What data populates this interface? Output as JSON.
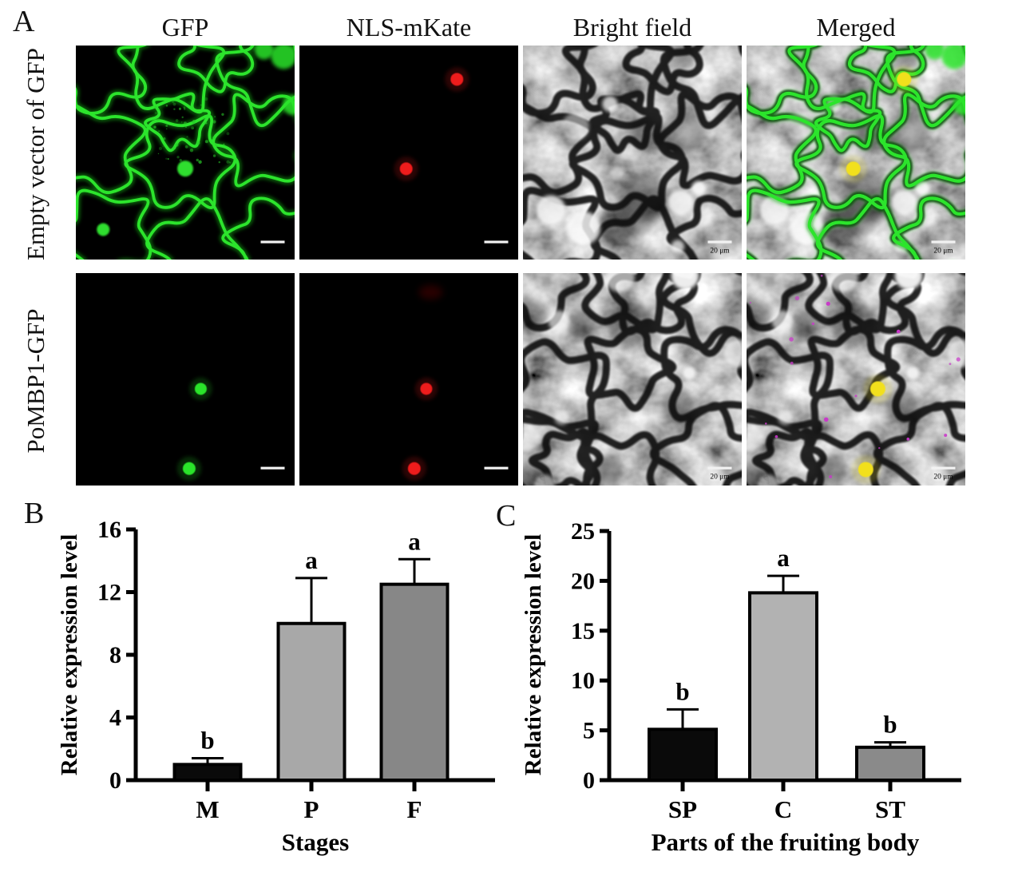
{
  "panel_a": {
    "label": "A",
    "column_headers": [
      "GFP",
      "NLS-mKate",
      "Bright field",
      "Merged"
    ],
    "scale_bar_label": "20 μm",
    "rows": [
      {
        "label": "Empty vector of GFP",
        "panels": [
          {
            "channel": "GFP",
            "render": "gfp-network",
            "seed": 11
          },
          {
            "channel": "NLS-mKate",
            "render": "black-dots",
            "dots": [
              {
                "x": 0.72,
                "y": 0.158,
                "r": 8,
                "color": "#ee1a1a"
              },
              {
                "x": 0.488,
                "y": 0.576,
                "r": 8,
                "color": "#ee1a1a"
              }
            ]
          },
          {
            "channel": "Bright field",
            "render": "brightfield",
            "seed": 11
          },
          {
            "channel": "Merged",
            "render": "merged",
            "seed": 11,
            "network": "green",
            "dots": [
              {
                "x": 0.72,
                "y": 0.158,
                "r": 9,
                "color": "#f2e01e"
              },
              {
                "x": 0.488,
                "y": 0.576,
                "r": 9,
                "color": "#f2e01e"
              }
            ]
          }
        ]
      },
      {
        "label": "PoMBP1-GFP",
        "panels": [
          {
            "channel": "GFP",
            "render": "black-dots",
            "dots": [
              {
                "x": 0.571,
                "y": 0.545,
                "r": 7.5,
                "color": "#2be42b"
              },
              {
                "x": 0.518,
                "y": 0.92,
                "r": 8,
                "color": "#2be42b"
              }
            ]
          },
          {
            "channel": "NLS-mKate",
            "render": "black-dots",
            "smudge": true,
            "dots": [
              {
                "x": 0.58,
                "y": 0.545,
                "r": 7.5,
                "color": "#ee1a1a"
              },
              {
                "x": 0.525,
                "y": 0.92,
                "r": 8,
                "color": "#ee1a1a"
              }
            ]
          },
          {
            "channel": "Bright field",
            "render": "brightfield",
            "seed": 29
          },
          {
            "channel": "Merged",
            "render": "merged",
            "seed": 29,
            "speckles": "#c937c9",
            "dots": [
              {
                "x": 0.6,
                "y": 0.545,
                "r": 9.5,
                "color": "#f2e01e"
              },
              {
                "x": 0.545,
                "y": 0.925,
                "r": 9.5,
                "color": "#f2e01e"
              }
            ]
          }
        ]
      }
    ]
  },
  "panel_b": {
    "label": "B"
  },
  "panel_c": {
    "label": "C"
  },
  "chart_data": [
    {
      "panel": "B",
      "type": "bar",
      "categories": [
        "M",
        "P",
        "F"
      ],
      "values": [
        1.0,
        10.0,
        12.5
      ],
      "errors": [
        0.4,
        2.9,
        1.6
      ],
      "sig_letters": [
        "b",
        "a",
        "a"
      ],
      "bar_colors": [
        "#0a0a0a",
        "#a8a8a8",
        "#878787"
      ],
      "title": "",
      "xlabel": "Stages",
      "ylabel": "Relative expression level",
      "ylim": [
        0,
        16
      ],
      "yticks": [
        0,
        4,
        8,
        12,
        16
      ],
      "grid": false,
      "legend_position": "none"
    },
    {
      "panel": "C",
      "type": "bar",
      "categories": [
        "SP",
        "C",
        "ST"
      ],
      "values": [
        5.1,
        18.8,
        3.3
      ],
      "errors": [
        2.0,
        1.7,
        0.5
      ],
      "sig_letters": [
        "b",
        "a",
        "b"
      ],
      "bar_colors": [
        "#0a0a0a",
        "#b2b2b2",
        "#8a8a8a"
      ],
      "title": "",
      "xlabel": "Parts of the fruiting body",
      "ylabel": "Relative expression level",
      "ylim": [
        0,
        25
      ],
      "yticks": [
        0,
        5,
        10,
        15,
        20,
        25
      ],
      "grid": false,
      "legend_position": "none"
    }
  ],
  "colors": {
    "gfp_green": "#2be42b",
    "mkate_red": "#ee1a1a",
    "merged_yellow": "#f2e01e",
    "merged_magenta": "#c937c9",
    "axis_black": "#000000"
  }
}
